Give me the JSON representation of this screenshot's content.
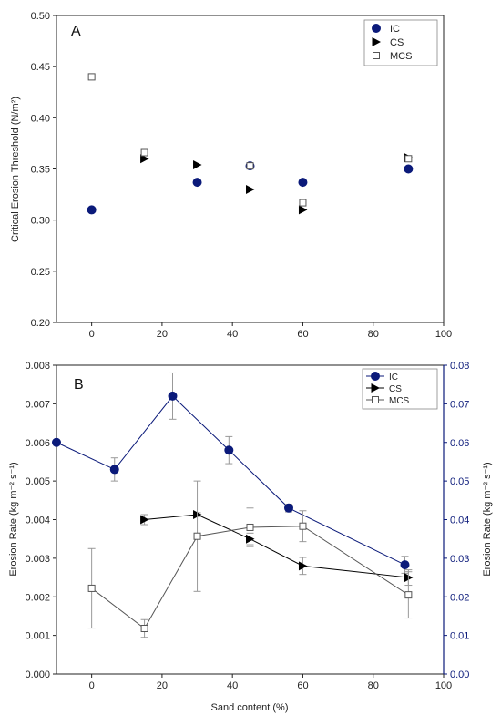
{
  "chart_data": [
    {
      "type": "scatter",
      "panel": "A",
      "ylabel": "Critical Erosion Threshold (N/m²)",
      "xlim": [
        -10,
        100
      ],
      "ylim": [
        0.2,
        0.5
      ],
      "xticks": [
        0,
        20,
        40,
        60,
        80,
        100
      ],
      "yticks": [
        "0.20",
        "0.25",
        "0.30",
        "0.35",
        "0.40",
        "0.45",
        "0.50"
      ],
      "legend_position": "top-right",
      "series": [
        {
          "name": "IC",
          "marker": "filled-circle",
          "color": "#0b1a7a",
          "points": [
            [
              0,
              0.31
            ],
            [
              30,
              0.337
            ],
            [
              45,
              0.353
            ],
            [
              60,
              0.337
            ],
            [
              90,
              0.35
            ]
          ]
        },
        {
          "name": "CS",
          "marker": "filled-triangle-right",
          "color": "#000000",
          "points": [
            [
              15,
              0.36
            ],
            [
              30,
              0.354
            ],
            [
              45,
              0.33
            ],
            [
              60,
              0.31
            ],
            [
              90,
              0.361
            ]
          ]
        },
        {
          "name": "MCS",
          "marker": "open-square",
          "color": "#555555",
          "points": [
            [
              0,
              0.44
            ],
            [
              15,
              0.366
            ],
            [
              45,
              0.353
            ],
            [
              60,
              0.317
            ],
            [
              90,
              0.36
            ]
          ]
        }
      ]
    },
    {
      "type": "line",
      "panel": "B",
      "xlabel": "Sand content (%)",
      "ylabel_left": "Erosion Rate (kg m⁻² s⁻¹)",
      "ylabel_right": "Erosion Rate (kg m⁻² s⁻¹)",
      "xlim": [
        -10,
        100
      ],
      "ylim_left": [
        0,
        0.008
      ],
      "ylim_right": [
        0,
        0.08
      ],
      "xticks": [
        0,
        20,
        40,
        60,
        80,
        100
      ],
      "yticks_left": [
        "0.000",
        "0.001",
        "0.002",
        "0.003",
        "0.004",
        "0.005",
        "0.006",
        "0.007",
        "0.008"
      ],
      "yticks_right": [
        "0.00",
        "0.01",
        "0.02",
        "0.03",
        "0.04",
        "0.05",
        "0.06",
        "0.07",
        "0.08"
      ],
      "legend_position": "top-right",
      "series": [
        {
          "name": "IC",
          "axis": "right",
          "marker": "filled-circle",
          "color": "#0b1a7a",
          "points": [
            [
              -10,
              0.06,
              0
            ],
            [
              6.5,
              0.053,
              0.003
            ],
            [
              23,
              0.072,
              0.006
            ],
            [
              39,
              0.058,
              0.0035
            ],
            [
              56,
              0.043,
              0.001
            ],
            [
              89,
              0.0283,
              0.0022
            ]
          ]
        },
        {
          "name": "CS",
          "axis": "left",
          "marker": "filled-triangle-right",
          "color": "#000000",
          "points": [
            [
              15,
              0.004,
              0.00013
            ],
            [
              30,
              0.00413,
              5e-05
            ],
            [
              45,
              0.0035,
              0.00015
            ],
            [
              60,
              0.0028,
              0.00022
            ],
            [
              90,
              0.0025,
              0.0002
            ]
          ]
        },
        {
          "name": "MCS",
          "axis": "left",
          "marker": "open-square",
          "color": "#555555",
          "points": [
            [
              0,
              0.00222,
              0.00103
            ],
            [
              15,
              0.00118,
              0.00023
            ],
            [
              30,
              0.00357,
              0.00143
            ],
            [
              45,
              0.0038,
              0.0005
            ],
            [
              60,
              0.00383,
              0.0004
            ],
            [
              90,
              0.00205,
              0.0006
            ]
          ]
        }
      ]
    }
  ]
}
